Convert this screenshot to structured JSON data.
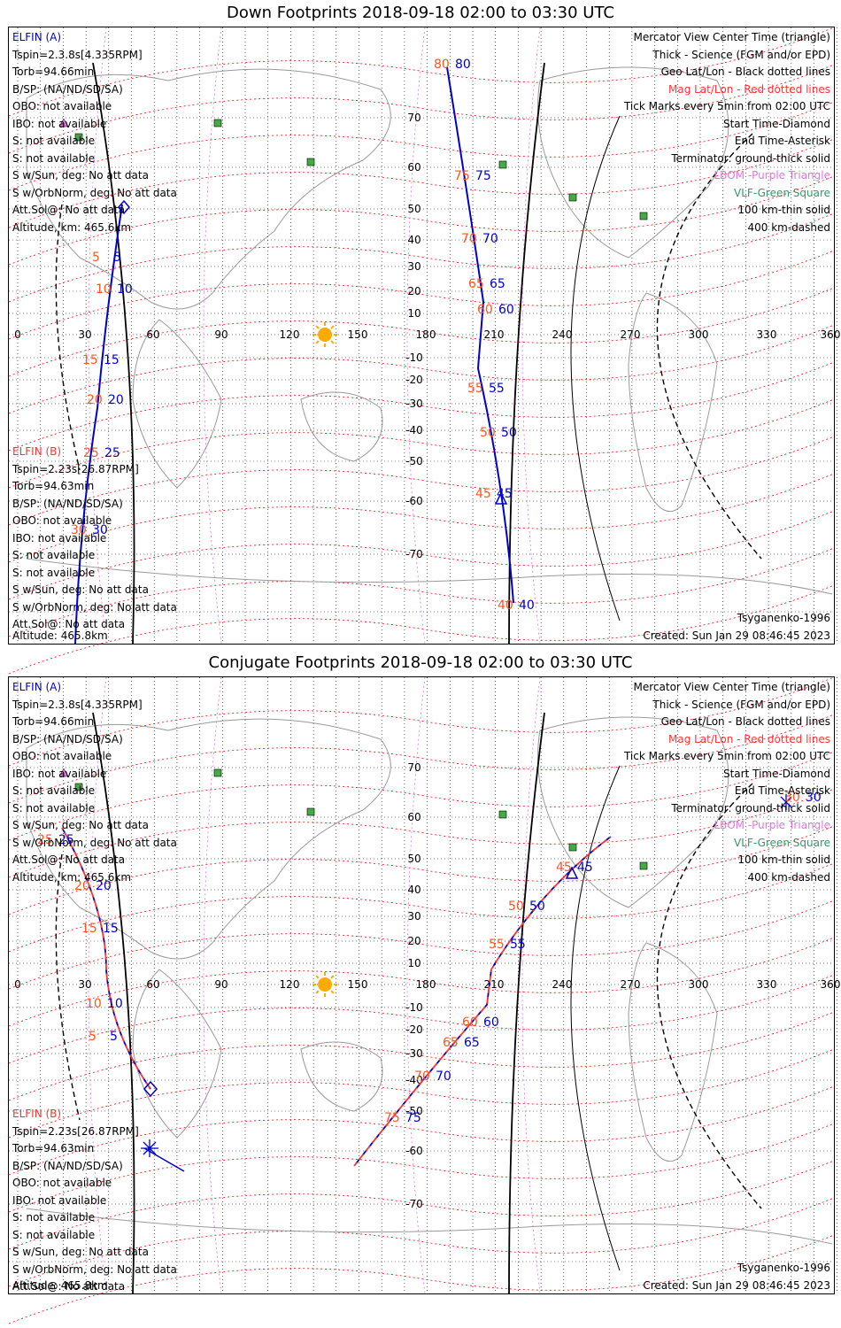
{
  "colors": {
    "elfin_a": "#0000cc",
    "elfin_b": "#ff3333",
    "orange_label": "#ff5522",
    "geo_grid": "#000000",
    "mag_grid": "#ff0000",
    "vlf": "#44aa44",
    "lbom": "#dd77dd",
    "sun": "#ffaa00",
    "coast": "#999999"
  },
  "lon_ticks": [
    "0",
    "30",
    "60",
    "90",
    "120",
    "150",
    "180",
    "210",
    "240",
    "270",
    "300",
    "330",
    "360"
  ],
  "lat_ticks": [
    "70",
    "60",
    "50",
    "40",
    "30",
    "20",
    "10",
    "-10",
    "-20",
    "-30",
    "-40",
    "-50",
    "-60",
    "-70"
  ],
  "panels": [
    {
      "title": "Down Footprints 2018-09-18 02:00 to 03:30 UTC",
      "elfin_a": {
        "name": "ELFIN (A)",
        "lines": [
          "Tspin=2.3.8s[4.335RPM]",
          "Torb=94.66min",
          "B/SP: (NA/ND/SD/SA)",
          "OBO: not available",
          "IBO: not available",
          "S: not available",
          "S: not available",
          "S w/Sun, deg: No att data",
          "S w/OrbNorm, deg: No att data",
          "Att.Sol@: No att data",
          "Altitude, km: 465.6km"
        ]
      },
      "elfin_b": {
        "name": "ELFIN (B)",
        "lines": [
          "Tspin=2.23s[26.87RPM]",
          "Torb=94.63min",
          "B/SP: (NA/ND/SD/SA)",
          "OBO: not available",
          "IBO: not available",
          "S: not available",
          "S: not available",
          "S w/Sun, deg: No att data",
          "S w/OrbNorm, deg: No att data",
          "Att.Sol@: No att data",
          "Altitude: 465.8km"
        ]
      },
      "legend": [
        "Mercator View Center Time (triangle)",
        "Thick - Science (FGM and/or EPD)",
        "Geo Lat/Lon - Black dotted lines",
        "Mag Lat/Lon - Red dotted lines",
        "Tick Marks every 5min from 02:00 UTC",
        "Start Time-Diamond",
        "End Time-Asterisk",
        "Terminator: ground-thick solid",
        "LBOM -Purple Triangle",
        "VLF-Green Square",
        "100 km-thin solid",
        "400 km-dashed"
      ],
      "model": "Tsyganenko-1996",
      "created": "Created: Sun Jan 29 08:46:45 2023",
      "tick_labels": [
        {
          "a": "80",
          "b": "80"
        },
        {
          "a": "75",
          "b": "75"
        },
        {
          "a": "70",
          "b": "70"
        },
        {
          "a": "65",
          "b": "65"
        },
        {
          "a": "60",
          "b": "60"
        },
        {
          "a": "55",
          "b": "55"
        },
        {
          "a": "50",
          "b": "50"
        },
        {
          "a": "45",
          "b": "45"
        },
        {
          "a": "40",
          "b": "40"
        },
        {
          "a": "5",
          "b": "5"
        },
        {
          "a": "10",
          "b": "10"
        },
        {
          "a": "15",
          "b": "15"
        },
        {
          "a": "20",
          "b": "20"
        },
        {
          "a": "25",
          "b": "25"
        },
        {
          "a": "30",
          "b": "30"
        }
      ]
    },
    {
      "title": "Conjugate Footprints 2018-09-18 02:00 to 03:30 UTC",
      "elfin_a": {
        "name": "ELFIN (A)",
        "lines": [
          "Tspin=2.3.8s[4.335RPM]",
          "Torb=94.66min",
          "B/SP: (NA/ND/SD/SA)",
          "OBO: not available",
          "IBO: not available",
          "S: not available",
          "S: not available",
          "S w/Sun, deg: No att data",
          "S w/OrbNorm, deg: No att data",
          "Att.Sol@: No att data",
          "Altitude, km: 465.6km"
        ]
      },
      "elfin_b": {
        "name": "ELFIN (B)",
        "lines": [
          "Tspin=2.23s[26.87RPM]",
          "Torb=94.63min",
          "B/SP: (NA/ND/SD/SA)",
          "OBO: not available",
          "IBO: not available",
          "S: not available",
          "S: not available",
          "S w/Sun, deg: No att data",
          "S w/OrbNorm, deg: No att data",
          "Att.Sol@: No att data",
          "Altitude: 465.8km"
        ]
      },
      "legend": [
        "Mercator View Center Time (triangle)",
        "Thick - Science (FGM and/or EPD)",
        "Geo Lat/Lon - Black dotted lines",
        "Mag Lat/Lon - Red dotted lines",
        "Tick Marks every 5min from 02:00 UTC",
        "Start Time-Diamond",
        "End Time-Asterisk",
        "Terminator: ground-thick solid",
        "LBOM -Purple Triangle",
        "VLF-Green Square",
        "100 km-thin solid",
        "400 km-dashed"
      ],
      "model": "Tsyganenko-1996",
      "created": "Created: Sun Jan 29 08:46:45 2023",
      "tick_labels": [
        {
          "a": "25",
          "b": "25"
        },
        {
          "a": "20",
          "b": "20"
        },
        {
          "a": "15",
          "b": "15"
        },
        {
          "a": "10",
          "b": "10"
        },
        {
          "a": "5",
          "b": "5"
        },
        {
          "a": "45",
          "b": "45"
        },
        {
          "a": "50",
          "b": "50"
        },
        {
          "a": "55",
          "b": "55"
        },
        {
          "a": "60",
          "b": "60"
        },
        {
          "a": "65",
          "b": "65"
        },
        {
          "a": "70",
          "b": "70"
        },
        {
          "a": "75",
          "b": "75"
        },
        {
          "a": "30",
          "b": "30"
        }
      ]
    }
  ]
}
